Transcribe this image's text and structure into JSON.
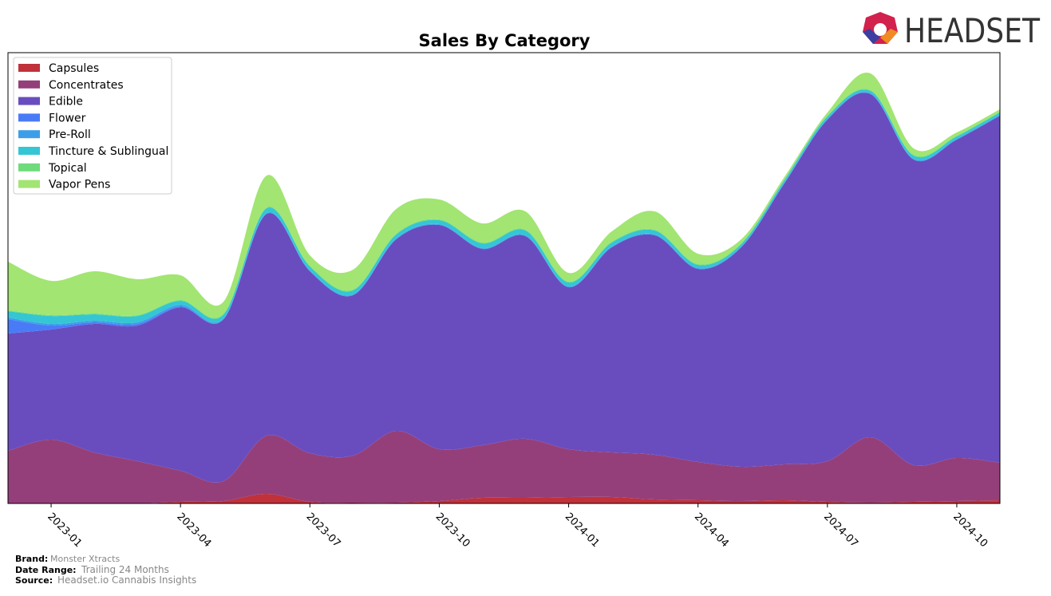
{
  "chart_data": {
    "type": "stacked-area",
    "title": "Sales By Category",
    "x": [
      "2022-12",
      "2023-01",
      "2023-02",
      "2023-03",
      "2023-04",
      "2023-05",
      "2023-06",
      "2023-07",
      "2023-08",
      "2023-09",
      "2023-10",
      "2023-11",
      "2023-12",
      "2024-01",
      "2024-02",
      "2024-03",
      "2024-04",
      "2024-05",
      "2024-06",
      "2024-07",
      "2024-08",
      "2024-09",
      "2024-10",
      "2024-11"
    ],
    "xticks": [
      "2023-01",
      "2023-04",
      "2023-07",
      "2023-10",
      "2024-01",
      "2024-04",
      "2024-07",
      "2024-10"
    ],
    "ylim": [
      0,
      565
    ],
    "legend": "upper left",
    "series": [
      {
        "name": "Capsules",
        "color": "#c0313a",
        "values": [
          0,
          0,
          0,
          0,
          2,
          3,
          12,
          2,
          1,
          1,
          3,
          7,
          7,
          8,
          8,
          5,
          4,
          3,
          4,
          2,
          1,
          2,
          3,
          4
        ]
      },
      {
        "name": "Concentrates",
        "color": "#953f7a",
        "values": [
          66,
          80,
          64,
          53,
          39,
          25,
          73,
          61,
          59,
          90,
          65,
          66,
          74,
          60,
          56,
          56,
          48,
          43,
          45,
          51,
          82,
          46,
          54,
          47
        ]
      },
      {
        "name": "Edible",
        "color": "#694dbf",
        "values": [
          147,
          138,
          161,
          170,
          205,
          203,
          278,
          228,
          201,
          240,
          281,
          246,
          254,
          203,
          257,
          275,
          242,
          275,
          352,
          428,
          430,
          383,
          399,
          435
        ]
      },
      {
        "name": "Flower",
        "color": "#4a7bf7",
        "values": [
          18,
          5,
          2,
          2,
          1,
          0,
          0,
          0,
          0,
          0,
          0,
          0,
          0,
          0,
          0,
          0,
          0,
          0,
          0,
          0,
          0,
          0,
          0,
          0
        ]
      },
      {
        "name": "Pre-Roll",
        "color": "#3c9ee8",
        "values": [
          2,
          2,
          2,
          2,
          2,
          1,
          1,
          1,
          1,
          1,
          1,
          1,
          1,
          1,
          1,
          1,
          1,
          1,
          1,
          1,
          1,
          1,
          1,
          1
        ]
      },
      {
        "name": "Tincture & Sublingual",
        "color": "#35c6d4",
        "values": [
          8,
          10,
          8,
          8,
          5,
          5,
          6,
          5,
          5,
          5,
          5,
          6,
          6,
          5,
          5,
          5,
          4,
          3,
          3,
          3,
          3,
          4,
          3,
          3
        ]
      },
      {
        "name": "Topical",
        "color": "#6fdb7a",
        "values": [
          1,
          1,
          1,
          1,
          1,
          1,
          1,
          1,
          1,
          1,
          1,
          1,
          1,
          1,
          1,
          1,
          1,
          1,
          1,
          1,
          1,
          1,
          1,
          1
        ]
      },
      {
        "name": "Vapor Pens",
        "color": "#a2e572",
        "values": [
          61,
          43,
          53,
          45,
          31,
          15,
          40,
          13,
          25,
          31,
          25,
          24,
          23,
          11,
          13,
          23,
          13,
          5,
          3,
          4,
          21,
          8,
          4,
          3
        ]
      }
    ]
  },
  "footer": {
    "brand_label": "Brand:",
    "brand": "Monster Xtracts",
    "range_label": "Date Range:",
    "range": "Trailing 24 Months",
    "source_label": "Source:",
    "source": "Headset.io Cannabis Insights"
  },
  "logo": "HEADSET"
}
